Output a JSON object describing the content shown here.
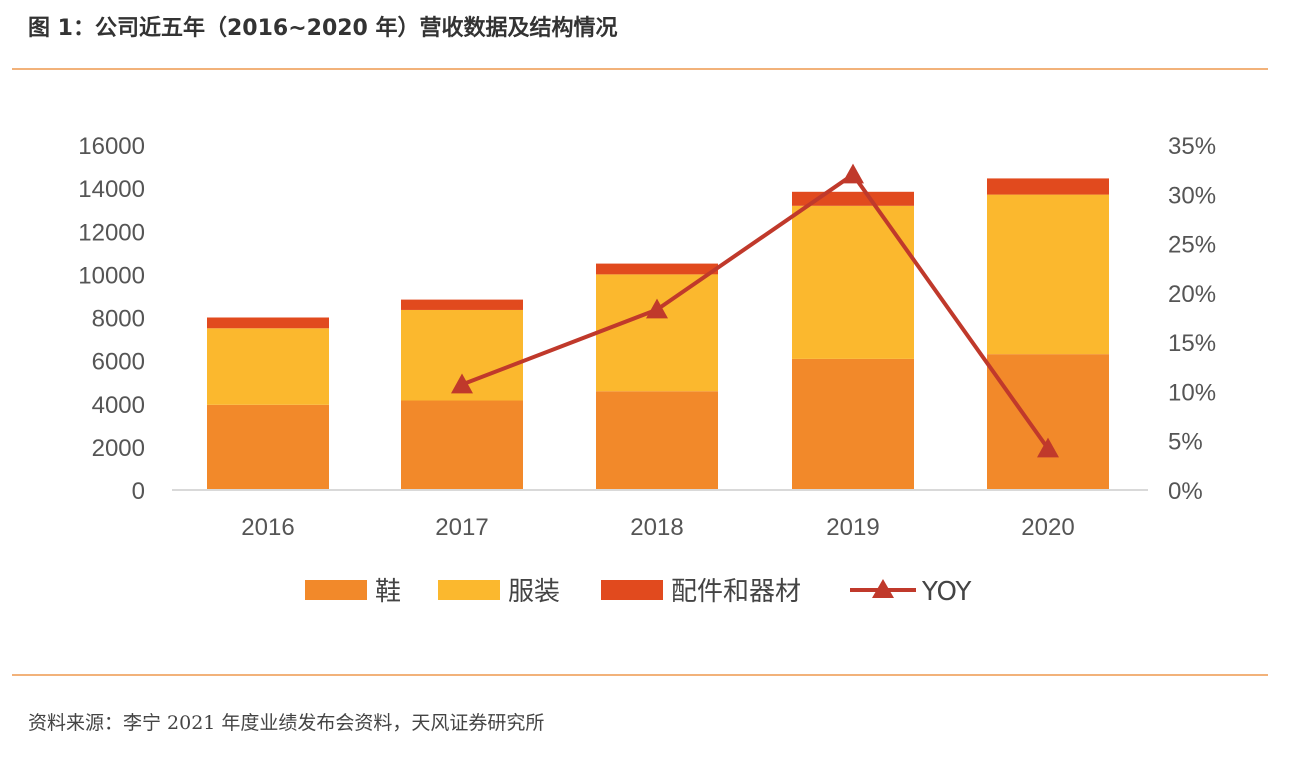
{
  "header": {
    "title": "图 1：公司近五年（2016~2020 年）营收数据及结构情况"
  },
  "footer": {
    "source": "资料来源：李宁 2021 年度业绩发布会资料，天风证券研究所"
  },
  "chart_data": {
    "type": "bar",
    "stacked": true,
    "categories": [
      "2016",
      "2017",
      "2018",
      "2019",
      "2020"
    ],
    "series": [
      {
        "name": "鞋",
        "color": "#f2892a",
        "values": [
          3950,
          4150,
          4580,
          6080,
          6300
        ]
      },
      {
        "name": "服装",
        "color": "#fbb82e",
        "values": [
          3550,
          4200,
          5420,
          7100,
          7400
        ]
      },
      {
        "name": "配件和器材",
        "color": "#e14a1e",
        "values": [
          500,
          480,
          500,
          650,
          750
        ]
      }
    ],
    "line_series": {
      "name": "YOY",
      "color": "#c0392b",
      "axis": "right",
      "values": [
        null,
        0.107,
        0.183,
        0.32,
        0.042
      ]
    },
    "ylim_left": [
      0,
      16000
    ],
    "y_ticks_left": [
      "16000",
      "14000",
      "12000",
      "10000",
      "8000",
      "6000",
      "4000",
      "2000",
      "0"
    ],
    "ylim_right": [
      0,
      0.35
    ],
    "y_ticks_right": [
      "35%",
      "30%",
      "25%",
      "20%",
      "15%",
      "10%",
      "5%",
      "0%"
    ],
    "legend_position": "bottom",
    "grid": false
  }
}
